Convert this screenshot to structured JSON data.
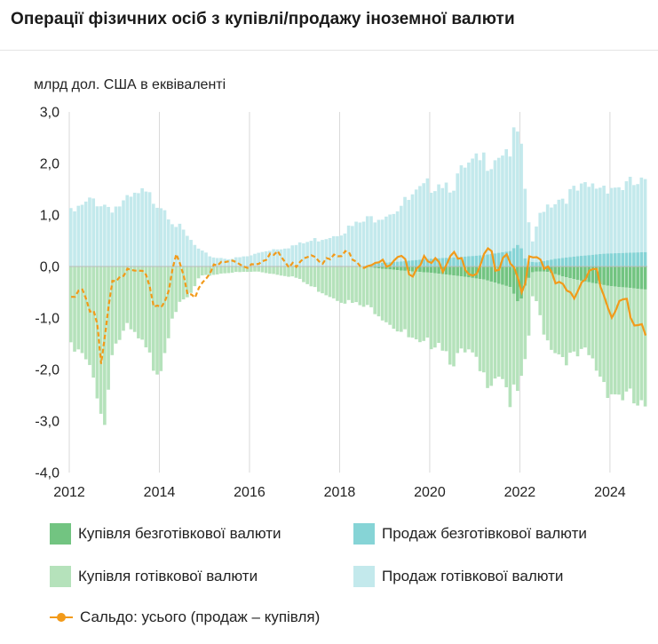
{
  "title": "Операції фізичних осіб з купівлі/продажу іноземної валюти",
  "chart_data": {
    "type": "bar",
    "ylabel": "млрд дол. США в еквіваленті",
    "ylim": [
      -4.0,
      3.0
    ],
    "yticks": [
      "3,0",
      "2,0",
      "1,0",
      "0,0",
      "-1,0",
      "-2,0",
      "-3,0",
      "-4,0"
    ],
    "ytick_values": [
      3,
      2,
      1,
      0,
      -1,
      -2,
      -3,
      -4
    ],
    "xlim": [
      2012,
      2024.83
    ],
    "xticks": [
      "2012",
      "2014",
      "2016",
      "2018",
      "2020",
      "2022",
      "2024"
    ],
    "xtick_values": [
      2012,
      2014,
      2016,
      2018,
      2020,
      2022,
      2024
    ],
    "grid": "vertical",
    "frequency": "monthly",
    "start": "2012-01",
    "end": "2024-10",
    "anchors": {
      "sell_total": [
        [
          2012.0,
          1.0
        ],
        [
          2012.3,
          1.15
        ],
        [
          2012.55,
          1.3
        ],
        [
          2012.8,
          1.2
        ],
        [
          2013.0,
          1.15
        ],
        [
          2013.3,
          1.25
        ],
        [
          2013.6,
          1.4
        ],
        [
          2013.9,
          1.3
        ],
        [
          2014.1,
          1.2
        ],
        [
          2014.3,
          0.9
        ],
        [
          2014.6,
          0.6
        ],
        [
          2014.9,
          0.3
        ],
        [
          2015.2,
          0.18
        ],
        [
          2015.6,
          0.15
        ],
        [
          2016.0,
          0.2
        ],
        [
          2016.4,
          0.32
        ],
        [
          2016.8,
          0.38
        ],
        [
          2017.1,
          0.42
        ],
        [
          2017.4,
          0.5
        ],
        [
          2017.8,
          0.6
        ],
        [
          2018.1,
          0.7
        ],
        [
          2018.5,
          0.85
        ],
        [
          2018.9,
          1.0
        ],
        [
          2019.2,
          1.1
        ],
        [
          2019.6,
          1.3
        ],
        [
          2019.9,
          1.5
        ],
        [
          2020.2,
          1.7
        ],
        [
          2020.5,
          1.6
        ],
        [
          2020.8,
          1.85
        ],
        [
          2021.1,
          2.0
        ],
        [
          2021.4,
          2.15
        ],
        [
          2021.6,
          2.3
        ],
        [
          2021.8,
          2.3
        ],
        [
          2022.0,
          2.6
        ],
        [
          2022.15,
          1.1
        ],
        [
          2022.3,
          0.45
        ],
        [
          2022.5,
          1.15
        ],
        [
          2022.8,
          1.3
        ],
        [
          2023.1,
          1.4
        ],
        [
          2023.5,
          1.5
        ],
        [
          2023.9,
          1.6
        ],
        [
          2024.2,
          1.55
        ],
        [
          2024.83,
          1.6
        ]
      ],
      "sell_cashless": [
        [
          2012.0,
          0.0
        ],
        [
          2018.6,
          0.0
        ],
        [
          2018.8,
          0.06
        ],
        [
          2019.4,
          0.1
        ],
        [
          2020.0,
          0.15
        ],
        [
          2020.6,
          0.18
        ],
        [
          2021.2,
          0.22
        ],
        [
          2021.8,
          0.3
        ],
        [
          2022.0,
          0.45
        ],
        [
          2022.15,
          0.1
        ],
        [
          2022.4,
          0.08
        ],
        [
          2022.8,
          0.15
        ],
        [
          2023.3,
          0.2
        ],
        [
          2023.9,
          0.25
        ],
        [
          2024.83,
          0.28
        ]
      ],
      "buy_total": [
        [
          2012.0,
          -1.6
        ],
        [
          2012.3,
          -1.75
        ],
        [
          2012.6,
          -2.3
        ],
        [
          2012.8,
          -3.1
        ],
        [
          2012.95,
          -1.6
        ],
        [
          2013.3,
          -1.2
        ],
        [
          2013.6,
          -1.5
        ],
        [
          2013.9,
          -1.95
        ],
        [
          2014.05,
          -1.9
        ],
        [
          2014.3,
          -0.9
        ],
        [
          2014.7,
          -0.55
        ],
        [
          2014.9,
          -0.2
        ],
        [
          2015.5,
          -0.12
        ],
        [
          2016.2,
          -0.1
        ],
        [
          2017.0,
          -0.2
        ],
        [
          2017.4,
          -0.4
        ],
        [
          2017.9,
          -0.6
        ],
        [
          2018.4,
          -0.75
        ],
        [
          2018.8,
          -0.85
        ],
        [
          2019.3,
          -1.2
        ],
        [
          2019.8,
          -1.6
        ],
        [
          2020.2,
          -1.4
        ],
        [
          2020.5,
          -1.8
        ],
        [
          2020.9,
          -1.7
        ],
        [
          2021.2,
          -2.2
        ],
        [
          2021.6,
          -2.0
        ],
        [
          2021.8,
          -2.6
        ],
        [
          2022.0,
          -2.45
        ],
        [
          2022.15,
          -1.9
        ],
        [
          2022.3,
          -0.5
        ],
        [
          2022.6,
          -1.4
        ],
        [
          2022.9,
          -1.7
        ],
        [
          2023.2,
          -1.8
        ],
        [
          2023.5,
          -1.7
        ],
        [
          2023.8,
          -2.1
        ],
        [
          2024.0,
          -2.4
        ],
        [
          2024.3,
          -2.5
        ],
        [
          2024.6,
          -2.7
        ],
        [
          2024.83,
          -2.9
        ]
      ],
      "buy_cashless": [
        [
          2012.0,
          0.0
        ],
        [
          2018.6,
          0.0
        ],
        [
          2018.8,
          -0.03
        ],
        [
          2019.4,
          -0.08
        ],
        [
          2020.0,
          -0.12
        ],
        [
          2020.6,
          -0.18
        ],
        [
          2021.2,
          -0.25
        ],
        [
          2021.8,
          -0.4
        ],
        [
          2022.0,
          -0.75
        ],
        [
          2022.15,
          -0.3
        ],
        [
          2022.3,
          -0.1
        ],
        [
          2022.6,
          -0.1
        ],
        [
          2023.0,
          -0.2
        ],
        [
          2023.5,
          -0.3
        ],
        [
          2024.0,
          -0.38
        ],
        [
          2024.5,
          -0.42
        ],
        [
          2024.83,
          -0.45
        ]
      ],
      "balance": [
        [
          2012.0,
          -0.6
        ],
        [
          2012.25,
          -0.3
        ],
        [
          2012.5,
          -0.8
        ],
        [
          2012.6,
          -0.8
        ],
        [
          2012.72,
          -2.0
        ],
        [
          2012.85,
          -0.9
        ],
        [
          2012.95,
          -0.3
        ],
        [
          2013.2,
          -0.2
        ],
        [
          2013.4,
          0.1
        ],
        [
          2013.75,
          0.0
        ],
        [
          2013.85,
          -0.6
        ],
        [
          2014.0,
          -0.9
        ],
        [
          2014.2,
          -0.5
        ],
        [
          2014.35,
          0.3
        ],
        [
          2014.6,
          -0.4
        ],
        [
          2014.8,
          -0.5
        ],
        [
          2015.0,
          -0.1
        ],
        [
          2015.5,
          0.15
        ],
        [
          2016.0,
          0.1
        ],
        [
          2016.4,
          0.3
        ],
        [
          2016.7,
          0.25
        ],
        [
          2016.9,
          0.0
        ],
        [
          2017.2,
          0.3
        ],
        [
          2017.45,
          0.35
        ],
        [
          2017.7,
          0.15
        ],
        [
          2018.0,
          0.25
        ],
        [
          2018.3,
          0.3
        ],
        [
          2018.55,
          0.1
        ],
        [
          2018.8,
          0.2
        ],
        [
          2019.1,
          0.0
        ],
        [
          2019.35,
          0.2
        ],
        [
          2019.6,
          -0.05
        ],
        [
          2019.9,
          0.3
        ],
        [
          2020.1,
          0.2
        ],
        [
          2020.3,
          -0.1
        ],
        [
          2020.5,
          0.25
        ],
        [
          2020.8,
          0.1
        ],
        [
          2021.0,
          -0.1
        ],
        [
          2021.3,
          0.5
        ],
        [
          2021.5,
          -0.2
        ],
        [
          2021.7,
          0.3
        ],
        [
          2021.9,
          -0.1
        ],
        [
          2022.1,
          -0.45
        ],
        [
          2022.2,
          0.35
        ],
        [
          2022.5,
          0.2
        ],
        [
          2022.8,
          -0.3
        ],
        [
          2023.0,
          -0.4
        ],
        [
          2023.2,
          -0.55
        ],
        [
          2023.5,
          0.0
        ],
        [
          2023.7,
          0.05
        ],
        [
          2023.85,
          -0.5
        ],
        [
          2024.0,
          -1.0
        ],
        [
          2024.2,
          -0.7
        ],
        [
          2024.35,
          -0.6
        ],
        [
          2024.5,
          -1.05
        ],
        [
          2024.7,
          -0.95
        ],
        [
          2024.83,
          -1.4
        ]
      ]
    },
    "series": [
      {
        "name": "Купівля безготівкової валюти",
        "color": "#72c481",
        "kind": "bar"
      },
      {
        "name": "Продаж безготівкової валюти",
        "color": "#86d4d6",
        "kind": "bar"
      },
      {
        "name": "Купівля готівкової валюти",
        "color": "#b5e2bb",
        "kind": "bar"
      },
      {
        "name": "Продаж готівкової валюти",
        "color": "#c3e9ec",
        "kind": "bar"
      },
      {
        "name": "Сальдо: усього (продаж – купівля)",
        "color": "#f29a1a",
        "kind": "line",
        "dashed_until": 2018.6
      }
    ]
  }
}
